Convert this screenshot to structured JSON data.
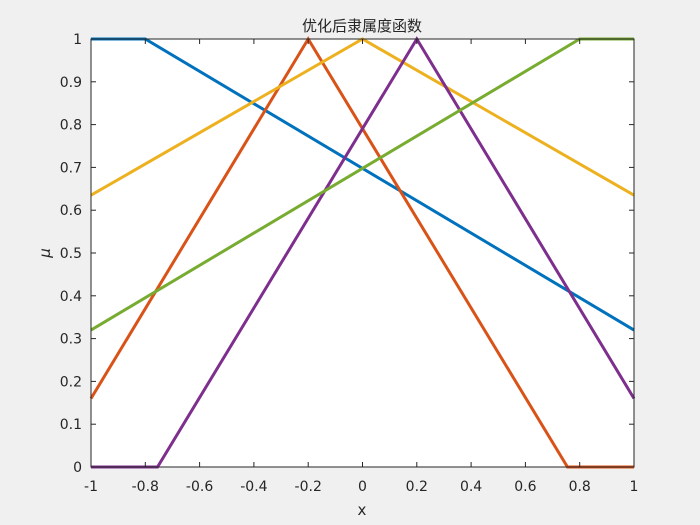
{
  "chart_data": {
    "type": "line",
    "title": "优化后隶属度函数",
    "xlabel": "x",
    "ylabel": "μ",
    "xlim": [
      -1,
      1
    ],
    "ylim": [
      0,
      1
    ],
    "grid": false,
    "legend": "none",
    "x_ticks": [
      -1,
      -0.8,
      -0.6,
      -0.4,
      -0.2,
      0,
      0.2,
      0.4,
      0.6,
      0.8,
      1
    ],
    "y_ticks": [
      0,
      0.1,
      0.2,
      0.3,
      0.4,
      0.5,
      0.6,
      0.7,
      0.8,
      0.9,
      1
    ],
    "x_tick_labels": [
      "-1",
      "-0.8",
      "-0.6",
      "-0.4",
      "-0.2",
      "0",
      "0.2",
      "0.4",
      "0.6",
      "0.8",
      "1"
    ],
    "y_tick_labels": [
      "0",
      "0.1",
      "0.2",
      "0.3",
      "0.4",
      "0.5",
      "0.6",
      "0.7",
      "0.8",
      "0.9",
      "1"
    ],
    "series": [
      {
        "color": "#0072BD",
        "x": [
          -1,
          -0.8,
          1
        ],
        "y": [
          1,
          1,
          0.32
        ]
      },
      {
        "color": "#D95319",
        "x": [
          -1,
          -0.2,
          0.755,
          1
        ],
        "y": [
          0.16,
          1,
          0,
          0
        ]
      },
      {
        "color": "#EDB120",
        "x": [
          -1,
          0,
          1
        ],
        "y": [
          0.635,
          1,
          0.635
        ]
      },
      {
        "color": "#7E2F8E",
        "x": [
          -1,
          -0.755,
          0.2,
          1
        ],
        "y": [
          0,
          0,
          1,
          0.16
        ]
      },
      {
        "color": "#77AC30",
        "x": [
          -1,
          0.8,
          1
        ],
        "y": [
          0.32,
          1,
          1
        ]
      }
    ]
  }
}
